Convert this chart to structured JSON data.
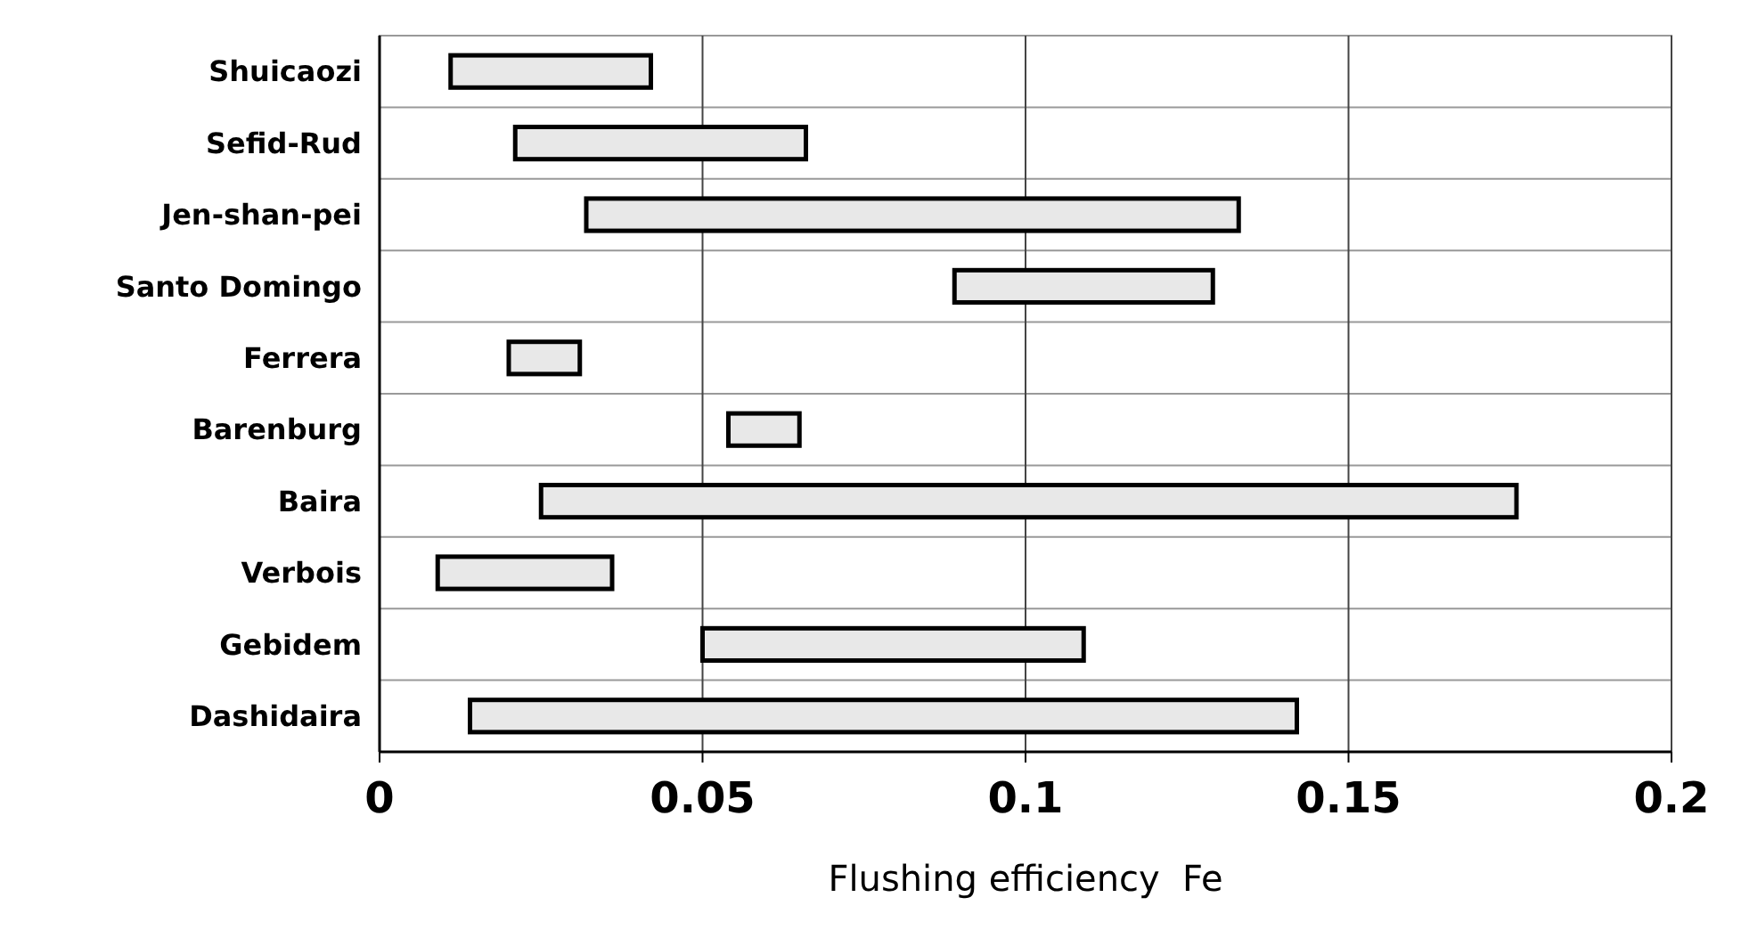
{
  "chart_data": {
    "type": "bar",
    "orientation": "horizontal",
    "xlabel": "Flushing efficiency  Fe",
    "categories": [
      "Shuicaozi",
      "Sefid-Rud",
      "Jen-shan-pei",
      "Santo Domingo",
      "Ferrera",
      "Barenburg",
      "Baira",
      "Verbois",
      "Gebidem",
      "Dashidaira"
    ],
    "base": [
      0.011,
      0.021,
      0.032,
      0.089,
      0.02,
      0.054,
      0.025,
      0.009,
      0.05,
      0.014
    ],
    "values": [
      0.031,
      0.045,
      0.101,
      0.04,
      0.011,
      0.011,
      0.151,
      0.027,
      0.059,
      0.128
    ],
    "color": "#e8e8e8",
    "xlim": [
      0,
      0.2
    ],
    "xticks": [
      0,
      {
        "value": 0.05,
        "label": "0.05"
      },
      {
        "value": 0.1,
        "label": "0.1"
      },
      {
        "value": 0.15,
        "label": "0.15"
      },
      {
        "value": 0.2,
        "label": "0.2"
      }
    ],
    "grid": true
  }
}
